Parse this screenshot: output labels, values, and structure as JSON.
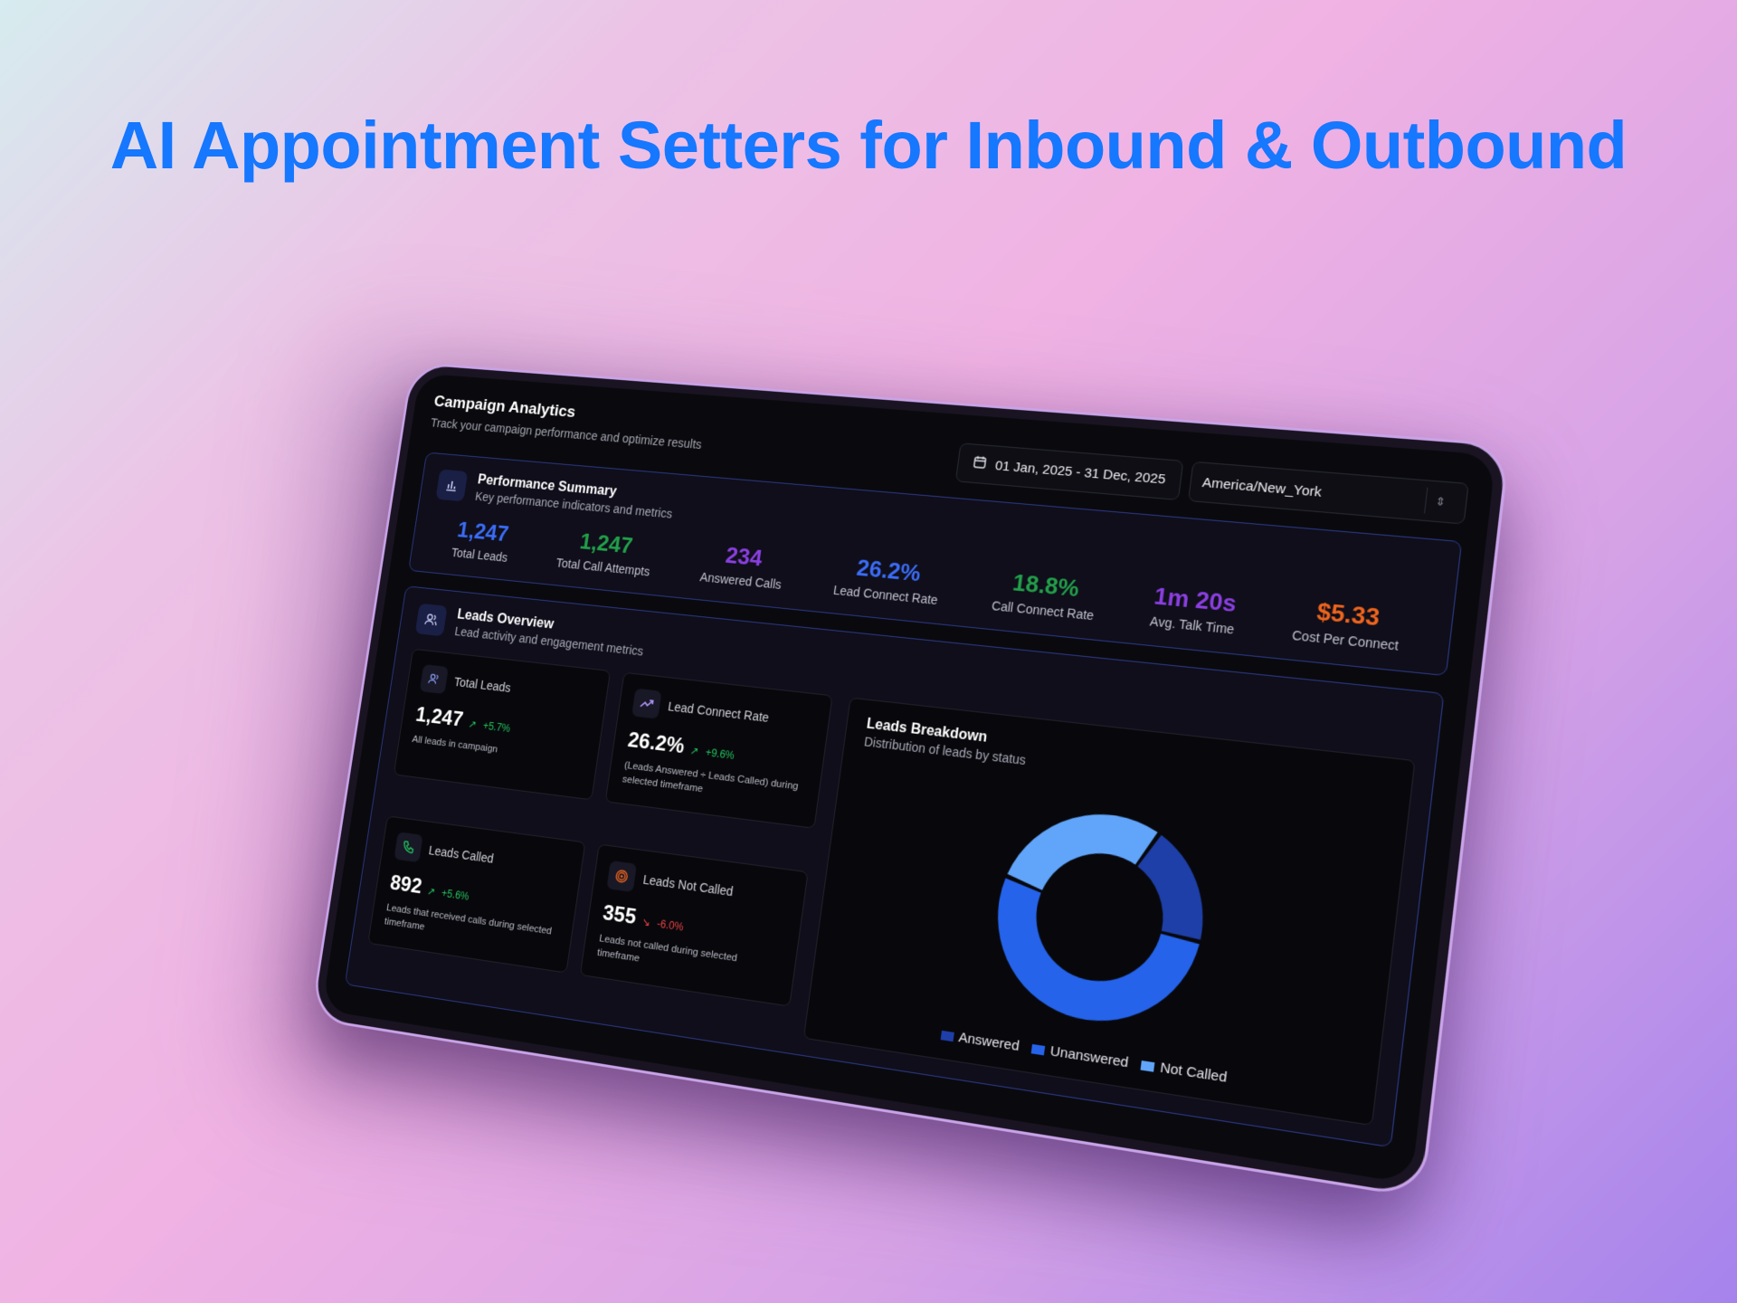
{
  "headline": "AI Appointment Setters for Inbound & Outbound",
  "header": {
    "title": "Campaign Analytics",
    "subtitle": "Track your campaign performance and optimize results",
    "date_range": "01 Jan, 2025 - 31 Dec, 2025",
    "timezone": "America/New_York"
  },
  "performance": {
    "title": "Performance Summary",
    "subtitle": "Key performance indicators and metrics",
    "kpis": [
      {
        "value": "1,247",
        "label": "Total Leads",
        "color": "#3b6cf6"
      },
      {
        "value": "1,247",
        "label": "Total Call Attempts",
        "color": "#22a04a"
      },
      {
        "value": "234",
        "label": "Answered Calls",
        "color": "#8b3fe0"
      },
      {
        "value": "26.2%",
        "label": "Lead Connect Rate",
        "color": "#3b6cf6"
      },
      {
        "value": "18.8%",
        "label": "Call Connect Rate",
        "color": "#22a04a"
      },
      {
        "value": "1m 20s",
        "label": "Avg. Talk Time",
        "color": "#8b3fe0"
      },
      {
        "value": "$5.33",
        "label": "Cost Per Connect",
        "color": "#f0651e"
      }
    ]
  },
  "leads": {
    "title": "Leads Overview",
    "subtitle": "Lead activity and engagement metrics",
    "cards": [
      {
        "label": "Total Leads",
        "value": "1,247",
        "delta": "+5.7%",
        "desc": "All leads in campaign"
      },
      {
        "label": "Lead Connect Rate",
        "value": "26.2%",
        "delta": "+9.6%",
        "desc": "(Leads Answered ÷ Leads Called) during selected timeframe"
      },
      {
        "label": "Leads Called",
        "value": "892",
        "delta": "+5.6%",
        "desc": "Leads that received calls during selected timeframe"
      },
      {
        "label": "Leads Not Called",
        "value": "355",
        "delta": "-6.0%",
        "desc": "Leads not called during selected timeframe"
      }
    ]
  },
  "breakdown": {
    "title": "Leads Breakdown",
    "subtitle": "Distribution of leads by status",
    "legend": [
      {
        "name": "Answered",
        "color": "#1e3fa8"
      },
      {
        "name": "Unanswered",
        "color": "#2563eb"
      },
      {
        "name": "Not Called",
        "color": "#60a5fa"
      }
    ]
  },
  "chart_data": {
    "type": "pie",
    "categories": [
      "Answered",
      "Unanswered",
      "Not Called"
    ],
    "values": [
      234,
      658,
      355
    ]
  }
}
